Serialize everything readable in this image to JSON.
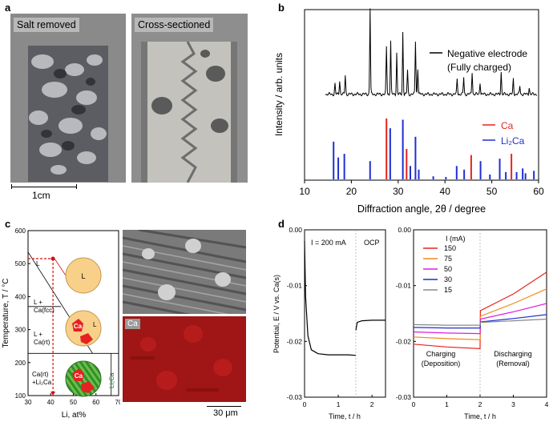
{
  "panels": {
    "a": {
      "label": "a",
      "photo_left_label": "Salt removed",
      "photo_right_label": "Cross-sectioned",
      "scalebar_label": "1cm"
    },
    "b": {
      "label": "b",
      "ylabel": "Intensity / arb. units",
      "xlabel": "Diffraction angle, 2θ / degree",
      "legend_top_line1": "Negative electrode",
      "legend_top_line2": "(Fully charged)",
      "legend_ca": "Ca",
      "legend_li2ca": "Li₂Ca"
    },
    "c": {
      "label": "c",
      "ylabel": "Temperature, T / °C",
      "xlabel": "Li, at%",
      "region_L": "L",
      "region_L_Ca_fcc_1": "L +",
      "region_L_Ca_fcc_2": "Ca(fcc)",
      "region_L_Ca_rt_1": "L +",
      "region_L_Ca_rt_2": "Ca(rt)",
      "region_Ca_Li2Ca_1": "Ca(rt)",
      "region_Ca_Li2Ca_2": "+Li₂Ca",
      "region_Li2Ca": "Li₂Ca",
      "circle_L": "L",
      "circle_Ca": "Ca",
      "circle_L2": "L",
      "circle_Ca2": "Ca",
      "map_label": "Ca",
      "scalebar_label": "30 μm"
    },
    "d": {
      "label": "d",
      "ylabel": "Potential, E / V vs. Ca(s)",
      "xlabel_left": "Time, t / h",
      "xlabel_right": "Time, t / h",
      "current_label": "I = 200 mA",
      "ocp_label": "OCP",
      "legend_title": "I (mA)",
      "charging_1": "Charging",
      "charging_2": "(Deposition)",
      "discharging_1": "Discharging",
      "discharging_2": "(Removal)"
    }
  },
  "chart_data": [
    {
      "type": "bar",
      "panel": "b",
      "xlabel": "Diffraction angle, 2θ / degree",
      "ylabel": "Intensity / arb. units",
      "xlim": [
        10,
        60
      ],
      "xticks": [
        10,
        20,
        30,
        40,
        50,
        60
      ],
      "series": [
        {
          "name": "Negative electrode (Fully charged)",
          "color": "#000000",
          "peaks_x": [
            16.5,
            17.5,
            18.7,
            24.0,
            27.5,
            28.4,
            29.7,
            31.0,
            32.0,
            33.7,
            34.2,
            42.6,
            44.0,
            45.8,
            47.5,
            52.0,
            54.6,
            56.0,
            58.0
          ],
          "peaks_y": [
            0.12,
            0.16,
            0.22,
            1.0,
            0.55,
            0.62,
            0.48,
            0.72,
            0.28,
            0.62,
            0.3,
            0.18,
            0.2,
            0.26,
            0.14,
            0.26,
            0.18,
            0.1,
            0.08
          ]
        },
        {
          "name": "Ca",
          "color": "#e8231c",
          "peaks_x": [
            27.5,
            31.8,
            45.6,
            54.2
          ],
          "peaks_y": [
            1.0,
            0.5,
            0.4,
            0.42
          ]
        },
        {
          "name": "Li₂Ca",
          "color": "#1f2fd1",
          "peaks_x": [
            16.2,
            17.2,
            18.5,
            24.0,
            28.3,
            31.0,
            32.6,
            33.7,
            34.4,
            37.5,
            40.2,
            42.5,
            44.1,
            47.6,
            49.6,
            51.7,
            53.0,
            55.3,
            56.6,
            57.2,
            59.0
          ],
          "peaks_y": [
            0.62,
            0.36,
            0.42,
            0.3,
            0.84,
            0.98,
            0.22,
            0.7,
            0.16,
            0.05,
            0.04,
            0.22,
            0.16,
            0.3,
            0.08,
            0.34,
            0.12,
            0.12,
            0.18,
            0.1,
            0.14
          ]
        }
      ]
    },
    {
      "type": "line",
      "panel": "c",
      "xlabel": "Li, at%",
      "ylabel": "Temperature, T / °C",
      "xlim": [
        30,
        70
      ],
      "ylim": [
        100,
        600
      ],
      "xticks": [
        30,
        40,
        50,
        60,
        70
      ],
      "yticks": [
        100,
        200,
        300,
        400,
        500,
        600
      ],
      "series": [
        {
          "name": "liquidus",
          "x": [
            30,
            58.5
          ],
          "y": [
            535,
            228
          ]
        },
        {
          "name": "fcc-rt",
          "x": [
            30,
            44.5
          ],
          "y": [
            370,
            370
          ]
        },
        {
          "name": "eutectic",
          "x": [
            30,
            70
          ],
          "y": [
            228,
            228
          ]
        },
        {
          "name": "Li2Ca",
          "x": [
            66.7,
            66.7
          ],
          "y": [
            100,
            228
          ]
        },
        {
          "name": "cooling",
          "x": [
            41,
            41
          ],
          "y": [
            515,
            100
          ]
        }
      ]
    },
    {
      "type": "line",
      "panel": "d-left",
      "xlabel": "Time, t / h",
      "xlim": [
        0,
        2.4
      ],
      "ylim": [
        -0.03,
        0.0
      ],
      "xticks": [
        0,
        1,
        2
      ],
      "yticks": [
        0.0,
        -0.01,
        -0.02,
        -0.03
      ],
      "series": [
        {
          "name": "I = 200 mA",
          "x": [
            0,
            0.03,
            0.1,
            0.2,
            0.4,
            0.7,
            1.0,
            1.3,
            1.52
          ],
          "y": [
            -0.002,
            -0.012,
            -0.019,
            -0.0215,
            -0.0222,
            -0.0224,
            -0.0224,
            -0.0224,
            -0.0225
          ]
        },
        {
          "name": "OCP",
          "x": [
            1.52,
            1.56,
            1.7,
            2.0,
            2.4
          ],
          "y": [
            -0.018,
            -0.0166,
            -0.0163,
            -0.0162,
            -0.0162
          ]
        }
      ]
    },
    {
      "type": "line",
      "panel": "d-right",
      "xlabel": "Time, t / h",
      "xlim": [
        0,
        4
      ],
      "ylim": [
        -0.03,
        0.0
      ],
      "xticks": [
        0,
        1,
        2,
        3,
        4
      ],
      "yticks": [
        0.0,
        -0.01,
        -0.02,
        -0.03
      ],
      "series": [
        {
          "name": "150",
          "color": "#e8231c",
          "x": [
            0,
            1,
            2,
            2.01,
            3,
            4
          ],
          "y": [
            -0.0205,
            -0.021,
            -0.0213,
            -0.0145,
            -0.0115,
            -0.0076
          ]
        },
        {
          "name": "75",
          "color": "#f08a1c",
          "x": [
            0,
            1,
            2,
            2.01,
            3,
            4
          ],
          "y": [
            -0.0192,
            -0.0195,
            -0.0197,
            -0.0155,
            -0.0132,
            -0.0106
          ]
        },
        {
          "name": "50",
          "color": "#e01ce0",
          "x": [
            0,
            1,
            2,
            2.01,
            3,
            4
          ],
          "y": [
            -0.0183,
            -0.0185,
            -0.0186,
            -0.016,
            -0.0147,
            -0.0132
          ]
        },
        {
          "name": "30",
          "color": "#1f2fd1",
          "x": [
            0,
            1,
            2,
            2.01,
            3,
            4
          ],
          "y": [
            -0.0175,
            -0.0176,
            -0.0176,
            -0.0165,
            -0.0159,
            -0.0152
          ]
        },
        {
          "name": "15",
          "color": "#888888",
          "x": [
            0,
            1,
            2,
            2.01,
            3,
            4
          ],
          "y": [
            -0.017,
            -0.0171,
            -0.0171,
            -0.0166,
            -0.0163,
            -0.016
          ]
        }
      ]
    }
  ]
}
